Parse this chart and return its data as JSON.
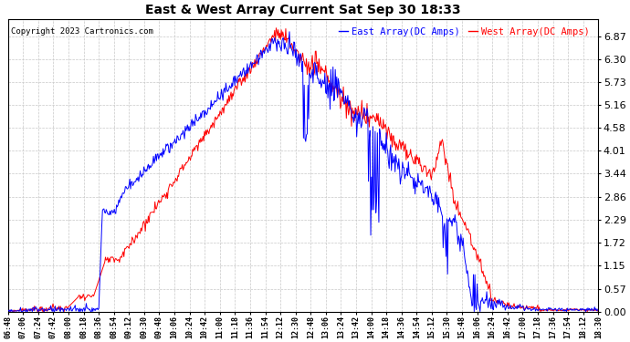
{
  "title": "East & West Array Current Sat Sep 30 18:33",
  "copyright": "Copyright 2023 Cartronics.com",
  "legend_east": "East Array(DC Amps)",
  "legend_west": "West Array(DC Amps)",
  "east_color": "blue",
  "west_color": "red",
  "background_color": "#ffffff",
  "grid_color": "#c8c8c8",
  "ylim": [
    0.0,
    7.3
  ],
  "yticks": [
    0.0,
    0.57,
    1.15,
    1.72,
    2.29,
    2.86,
    3.44,
    4.01,
    4.58,
    5.16,
    5.73,
    6.3,
    6.87
  ],
  "xtick_labels": [
    "06:48",
    "07:06",
    "07:24",
    "07:42",
    "08:00",
    "08:18",
    "08:36",
    "08:54",
    "09:12",
    "09:30",
    "09:48",
    "10:06",
    "10:24",
    "10:42",
    "11:00",
    "11:18",
    "11:36",
    "11:54",
    "12:12",
    "12:30",
    "12:48",
    "13:06",
    "13:24",
    "13:42",
    "14:00",
    "14:18",
    "14:36",
    "14:54",
    "15:12",
    "15:30",
    "15:48",
    "16:06",
    "16:24",
    "16:42",
    "17:00",
    "17:18",
    "17:36",
    "17:54",
    "18:12",
    "18:30"
  ],
  "n_points": 800
}
